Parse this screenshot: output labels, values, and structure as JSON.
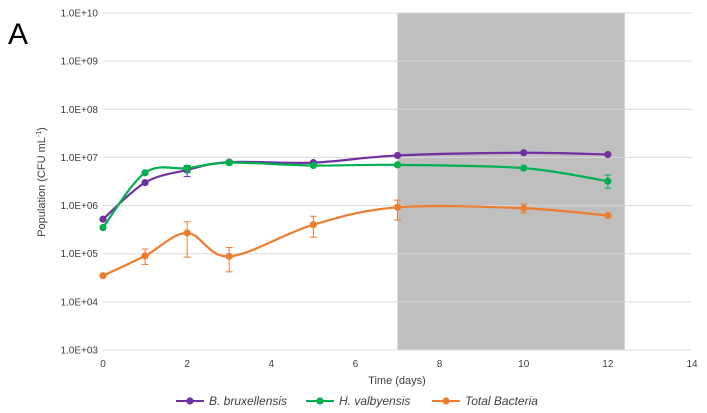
{
  "panel_label": "A",
  "chart_data": {
    "type": "line",
    "title": "",
    "xlabel": "Time (days)",
    "ylabel": {
      "main": "Population (CFU mL",
      "sup": "-1",
      "close": ")"
    },
    "xlim": [
      0,
      14
    ],
    "xticks": [
      0,
      2,
      4,
      6,
      8,
      10,
      12,
      14
    ],
    "ylim": [
      1000,
      10000000000
    ],
    "yscale": "log",
    "yticks": [
      {
        "value": 1000,
        "label": "1.0E+03"
      },
      {
        "value": 10000,
        "label": "1.0E+04"
      },
      {
        "value": 100000,
        "label": "1.0E+05"
      },
      {
        "value": 1000000,
        "label": "1.0E+06"
      },
      {
        "value": 10000000,
        "label": "1.0E+07"
      },
      {
        "value": 100000000,
        "label": "1.0E+08"
      },
      {
        "value": 1000000000,
        "label": "1.0E+09"
      },
      {
        "value": 10000000000,
        "label": "1.0E+10"
      }
    ],
    "grid": "horizontal",
    "shaded_region": {
      "x": [
        7,
        12.4
      ],
      "color": "#bfbfbf"
    },
    "legend_position": "bottom",
    "series": [
      {
        "name": "B. bruxellensis",
        "color": "#7030a0",
        "x": [
          0,
          1,
          2,
          3,
          5,
          7,
          10,
          12
        ],
        "y": [
          520000,
          3000000,
          5500000,
          8000000,
          7800000,
          11000000,
          12500000,
          11500000
        ],
        "err_low": [
          null,
          null,
          4000000,
          null,
          null,
          null,
          null,
          null
        ],
        "err_high": [
          null,
          null,
          6500000,
          null,
          null,
          null,
          null,
          null
        ]
      },
      {
        "name": "H. valbyensis",
        "color": "#00b050",
        "x": [
          0,
          1,
          2,
          3,
          5,
          7,
          10,
          12
        ],
        "y": [
          350000,
          4800000,
          6000000,
          7800000,
          6800000,
          7000000,
          6000000,
          3200000
        ],
        "err_low": [
          null,
          null,
          4800000,
          7000000,
          null,
          null,
          null,
          2300000
        ],
        "err_high": [
          null,
          null,
          6800000,
          8600000,
          null,
          null,
          null,
          4300000
        ]
      },
      {
        "name": "Total Bacteria",
        "color": "#ed7d31",
        "x": [
          0,
          1,
          2,
          3,
          5,
          7,
          10,
          12
        ],
        "y": [
          35000,
          90000,
          270000,
          88000,
          400000,
          920000,
          880000,
          620000
        ],
        "err_low": [
          null,
          60000,
          85000,
          42000,
          220000,
          500000,
          700000,
          null
        ],
        "err_high": [
          null,
          125000,
          460000,
          135000,
          600000,
          1300000,
          1080000,
          null
        ]
      }
    ]
  }
}
